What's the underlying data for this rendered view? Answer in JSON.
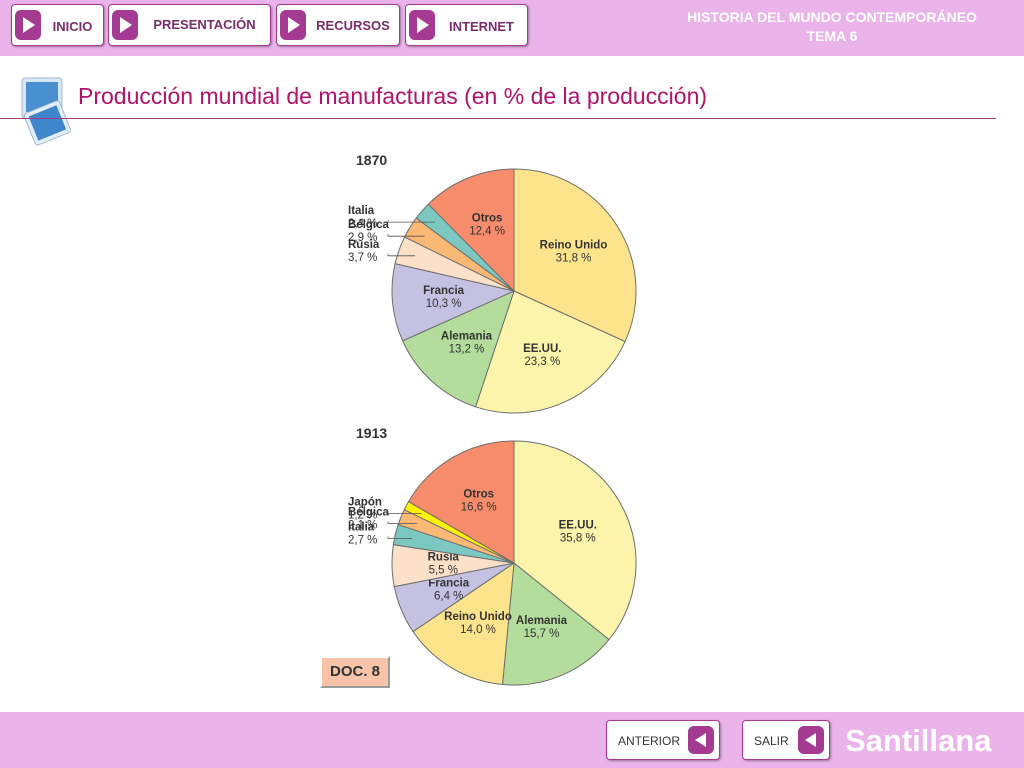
{
  "nav": {
    "inicio": "INICIO",
    "presentacion": "PRESENTACIÓN",
    "recursos": "RECURSOS",
    "internet": "INTERNET"
  },
  "header": {
    "course": "HISTORIA DEL MUNDO CONTEMPORÁNEO",
    "unit": "TEMA 6"
  },
  "page": {
    "title": "Producción mundial de manufacturas (en % de la producción)",
    "doc_label": "DOC. 8"
  },
  "footer": {
    "prev": "ANTERIOR",
    "exit": "SALIR",
    "brand": "Santillana"
  },
  "colors": {
    "nav_bar": "#eab3ea",
    "title": "#b0126c",
    "arrow": "#a43a91"
  },
  "chart_data": [
    {
      "type": "pie",
      "title": "1870",
      "slices": [
        {
          "label": "Reino Unido",
          "value": 31.8,
          "text": "31,8 %",
          "color": "#fde48c"
        },
        {
          "label": "EE.UU.",
          "value": 23.3,
          "text": "23,3 %",
          "color": "#fdf4ac"
        },
        {
          "label": "Alemania",
          "value": 13.2,
          "text": "13,2 %",
          "color": "#b4dc9c"
        },
        {
          "label": "Francia",
          "value": 10.3,
          "text": "10,3 %",
          "color": "#c5c1e1"
        },
        {
          "label": "Rusia",
          "value": 3.7,
          "text": "3,7 %",
          "color": "#fde0c8"
        },
        {
          "label": "Bélgica",
          "value": 2.9,
          "text": "2,9 %",
          "color": "#f9b874"
        },
        {
          "label": "Italia",
          "value": 2.4,
          "text": "2,4 %",
          "color": "#7cc8c0"
        },
        {
          "label": "Otros",
          "value": 12.4,
          "text": "12,4 %",
          "color": "#f78c6c"
        }
      ]
    },
    {
      "type": "pie",
      "title": "1913",
      "slices": [
        {
          "label": "EE.UU.",
          "value": 35.8,
          "text": "35,8 %",
          "color": "#fdf4ac"
        },
        {
          "label": "Alemania",
          "value": 15.7,
          "text": "15,7 %",
          "color": "#b4dc9c"
        },
        {
          "label": "Reino Unido",
          "value": 14.0,
          "text": "14,0 %",
          "color": "#fde48c"
        },
        {
          "label": "Francia",
          "value": 6.4,
          "text": "6,4 %",
          "color": "#c5c1e1"
        },
        {
          "label": "Rusia",
          "value": 5.5,
          "text": "5,5 %",
          "color": "#fde0c8"
        },
        {
          "label": "Italia",
          "value": 2.7,
          "text": "2,7 %",
          "color": "#7cc8c0"
        },
        {
          "label": "Bélgica",
          "value": 2.1,
          "text": "2,1 %",
          "color": "#f9b874"
        },
        {
          "label": "Japón",
          "value": 1.2,
          "text": "1,2 %",
          "color": "#fff200"
        },
        {
          "label": "Otros",
          "value": 16.6,
          "text": "16,6 %",
          "color": "#f78c6c"
        }
      ]
    }
  ]
}
